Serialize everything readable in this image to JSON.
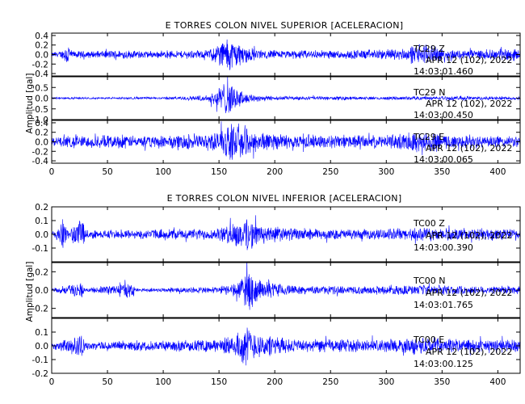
{
  "chart_data": [
    {
      "type": "line",
      "title": "E TORRES COLON NIVEL SUPERIOR [ACELERACION]",
      "ylabel": "Amplitud [gal]",
      "xlim": [
        0,
        420
      ],
      "x_ticks": [
        0,
        50,
        100,
        150,
        200,
        250,
        300,
        350,
        400
      ],
      "grid": false,
      "series": [
        {
          "name": "TC29 Z",
          "ylim": [
            -0.45,
            0.45
          ],
          "y_ticks": [
            -0.4,
            -0.2,
            0.0,
            0.2,
            0.4
          ],
          "annotation": [
            "TC29   Z",
            "APR 12 (102), 2022",
            "14:03:01.460"
          ],
          "envelope": [
            [
              0,
              0.05
            ],
            [
              10,
              0.1
            ],
            [
              15,
              0.3
            ],
            [
              17,
              0.08
            ],
            [
              40,
              0.08
            ],
            [
              60,
              0.1
            ],
            [
              100,
              0.08
            ],
            [
              140,
              0.1
            ],
            [
              150,
              0.28
            ],
            [
              158,
              0.42
            ],
            [
              165,
              0.32
            ],
            [
              175,
              0.18
            ],
            [
              190,
              0.1
            ],
            [
              230,
              0.1
            ],
            [
              260,
              0.1
            ],
            [
              300,
              0.12
            ],
            [
              320,
              0.15
            ],
            [
              330,
              0.25
            ],
            [
              340,
              0.2
            ],
            [
              360,
              0.12
            ],
            [
              380,
              0.1
            ],
            [
              400,
              0.12
            ],
            [
              410,
              0.15
            ],
            [
              420,
              0.12
            ]
          ]
        },
        {
          "name": "TC29 N",
          "ylim": [
            -1.0,
            1.0
          ],
          "y_ticks": [
            -1.0,
            -0.5,
            0.0,
            0.5
          ],
          "annotation": [
            "TC29   N",
            "APR 12 (102), 2022",
            "14:03:00.450"
          ],
          "envelope": [
            [
              0,
              0.05
            ],
            [
              50,
              0.05
            ],
            [
              100,
              0.06
            ],
            [
              140,
              0.15
            ],
            [
              150,
              0.6
            ],
            [
              158,
              0.95
            ],
            [
              165,
              0.6
            ],
            [
              175,
              0.25
            ],
            [
              200,
              0.1
            ],
            [
              300,
              0.08
            ],
            [
              340,
              0.1
            ],
            [
              400,
              0.1
            ],
            [
              420,
              0.08
            ]
          ]
        },
        {
          "name": "TC29 E",
          "ylim": [
            -0.45,
            0.45
          ],
          "y_ticks": [
            -0.4,
            -0.2,
            0.0,
            0.2,
            0.4
          ],
          "annotation": [
            "TC29   E",
            "APR 12 (102), 2022",
            "14:03:00.065"
          ],
          "envelope": [
            [
              0,
              0.1
            ],
            [
              20,
              0.15
            ],
            [
              60,
              0.15
            ],
            [
              100,
              0.15
            ],
            [
              140,
              0.2
            ],
            [
              150,
              0.3
            ],
            [
              160,
              0.45
            ],
            [
              175,
              0.35
            ],
            [
              190,
              0.2
            ],
            [
              220,
              0.15
            ],
            [
              300,
              0.15
            ],
            [
              330,
              0.25
            ],
            [
              345,
              0.2
            ],
            [
              380,
              0.15
            ],
            [
              420,
              0.12
            ]
          ]
        }
      ]
    },
    {
      "type": "line",
      "title": "E TORRES COLON NIVEL INFERIOR [ACELERACION]",
      "ylabel": "Amplitud [gal]",
      "xlim": [
        0,
        420
      ],
      "x_ticks": [
        0,
        50,
        100,
        150,
        200,
        250,
        300,
        350,
        400
      ],
      "grid": false,
      "series": [
        {
          "name": "TC00 Z",
          "ylim": [
            -0.2,
            0.2
          ],
          "y_ticks": [
            -0.1,
            0.0,
            0.1,
            0.2
          ],
          "annotation": [
            "TC00   Z",
            "APR 12 (102), 2022",
            "14:03:00.390"
          ],
          "envelope": [
            [
              0,
              0.02
            ],
            [
              10,
              0.12
            ],
            [
              15,
              0.03
            ],
            [
              28,
              0.15
            ],
            [
              30,
              0.04
            ],
            [
              60,
              0.03
            ],
            [
              100,
              0.04
            ],
            [
              150,
              0.05
            ],
            [
              165,
              0.1
            ],
            [
              175,
              0.15
            ],
            [
              185,
              0.08
            ],
            [
              220,
              0.05
            ],
            [
              250,
              0.04
            ],
            [
              300,
              0.04
            ],
            [
              330,
              0.06
            ],
            [
              345,
              0.05
            ],
            [
              380,
              0.05
            ],
            [
              420,
              0.05
            ]
          ]
        },
        {
          "name": "TC00 N",
          "ylim": [
            -0.3,
            0.3
          ],
          "y_ticks": [
            -0.2,
            0.0,
            0.2
          ],
          "annotation": [
            "TC00   N",
            "APR 12 (102), 2022",
            "14:03:01.765"
          ],
          "envelope": [
            [
              0,
              0.02
            ],
            [
              28,
              0.1
            ],
            [
              30,
              0.02
            ],
            [
              73,
              0.1
            ],
            [
              75,
              0.02
            ],
            [
              150,
              0.04
            ],
            [
              168,
              0.1
            ],
            [
              175,
              0.28
            ],
            [
              185,
              0.12
            ],
            [
              220,
              0.05
            ],
            [
              300,
              0.05
            ],
            [
              340,
              0.06
            ],
            [
              380,
              0.05
            ],
            [
              420,
              0.05
            ]
          ]
        },
        {
          "name": "TC00 E",
          "ylim": [
            -0.2,
            0.2
          ],
          "y_ticks": [
            -0.2,
            -0.1,
            0.0,
            0.1
          ],
          "annotation": [
            "TC00   E",
            "APR 12 (102), 2022",
            "14:03:00.125"
          ],
          "envelope": [
            [
              0,
              0.02
            ],
            [
              28,
              0.1
            ],
            [
              30,
              0.03
            ],
            [
              80,
              0.04
            ],
            [
              150,
              0.05
            ],
            [
              165,
              0.1
            ],
            [
              175,
              0.16
            ],
            [
              185,
              0.1
            ],
            [
              220,
              0.05
            ],
            [
              300,
              0.05
            ],
            [
              335,
              0.07
            ],
            [
              350,
              0.05
            ],
            [
              400,
              0.05
            ],
            [
              420,
              0.05
            ]
          ]
        }
      ]
    }
  ],
  "colors": {
    "trace": "#0000ff",
    "axes": "#000000",
    "background": "#ffffff"
  }
}
